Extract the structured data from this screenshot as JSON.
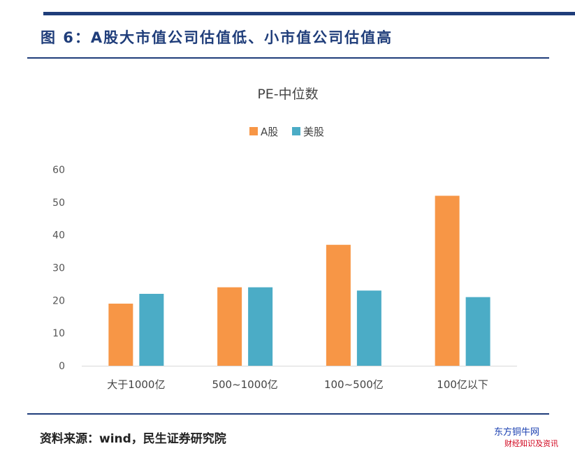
{
  "header": {
    "figure_title": "图 6：A股大市值公司估值低、小市值公司估值高"
  },
  "footer": {
    "source": "资料来源：wind，民生证券研究院"
  },
  "watermark": {
    "line1": "东方铜牛网",
    "line2": "财经知识及资讯"
  },
  "colors": {
    "a_share": "#f79646",
    "us_share": "#4bacc6",
    "brand": "#1f3d7a"
  },
  "chart_data": {
    "type": "bar",
    "title": "PE-中位数",
    "categories": [
      "大于1000亿",
      "500~1000亿",
      "100~500亿",
      "100亿以下"
    ],
    "series": [
      {
        "name": "A股",
        "values": [
          19,
          24,
          37,
          52
        ]
      },
      {
        "name": "美股",
        "values": [
          22,
          24,
          23,
          21
        ]
      }
    ],
    "ylim": [
      0,
      60
    ],
    "yticks": [
      0,
      10,
      20,
      30,
      40,
      50,
      60
    ],
    "xlabel": "",
    "ylabel": "",
    "legend": "top-center",
    "grid": false
  }
}
